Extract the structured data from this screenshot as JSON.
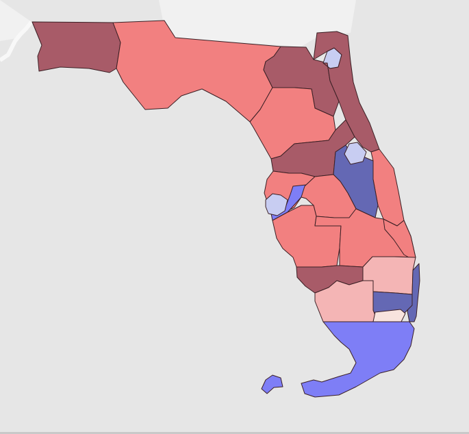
{
  "map": {
    "background_color": "#e6e6e6",
    "water_color": "#e6e6e6",
    "neighbor_land_color": "#f1f1f1",
    "border_color": "#3a1f24",
    "legend_colors": {
      "strong_republican": "#a85b68",
      "republican": "#f28080",
      "lean_republican": "#f4b5b5",
      "tossup_light": "#f8e3de",
      "lean_democratic": "#c8cdf2",
      "democratic": "#7e7ef6",
      "strong_democratic": "#6468b4"
    },
    "districts": [
      {
        "id": "panhandle-west",
        "category": "strong_republican"
      },
      {
        "id": "panhandle-central",
        "category": "republican"
      },
      {
        "id": "north-central",
        "category": "strong_republican"
      },
      {
        "id": "jacksonville",
        "category": "lean_democratic"
      },
      {
        "id": "northeast-coast",
        "category": "strong_republican"
      },
      {
        "id": "north-florida-inland",
        "category": "republican"
      },
      {
        "id": "central-west",
        "category": "strong_republican"
      },
      {
        "id": "east-coast-central",
        "category": "republican"
      },
      {
        "id": "orlando",
        "category": "strong_democratic"
      },
      {
        "id": "orlando-north",
        "category": "lean_democratic"
      },
      {
        "id": "tampa-north",
        "category": "republican"
      },
      {
        "id": "tampa",
        "category": "democratic"
      },
      {
        "id": "st-petersburg",
        "category": "lean_democratic"
      },
      {
        "id": "central-polk",
        "category": "republican"
      },
      {
        "id": "gulf-coast-sarasota",
        "category": "republican"
      },
      {
        "id": "heartland",
        "category": "republican"
      },
      {
        "id": "east-central-south",
        "category": "republican"
      },
      {
        "id": "treasure-coast",
        "category": "lean_republican"
      },
      {
        "id": "southwest-coast",
        "category": "strong_republican"
      },
      {
        "id": "southwest-interior",
        "category": "lean_republican"
      },
      {
        "id": "palm-beach-coast",
        "category": "strong_democratic"
      },
      {
        "id": "broward",
        "category": "strong_democratic"
      },
      {
        "id": "broward-west",
        "category": "tossup_light"
      },
      {
        "id": "miami-dade-keys",
        "category": "democratic"
      }
    ]
  }
}
